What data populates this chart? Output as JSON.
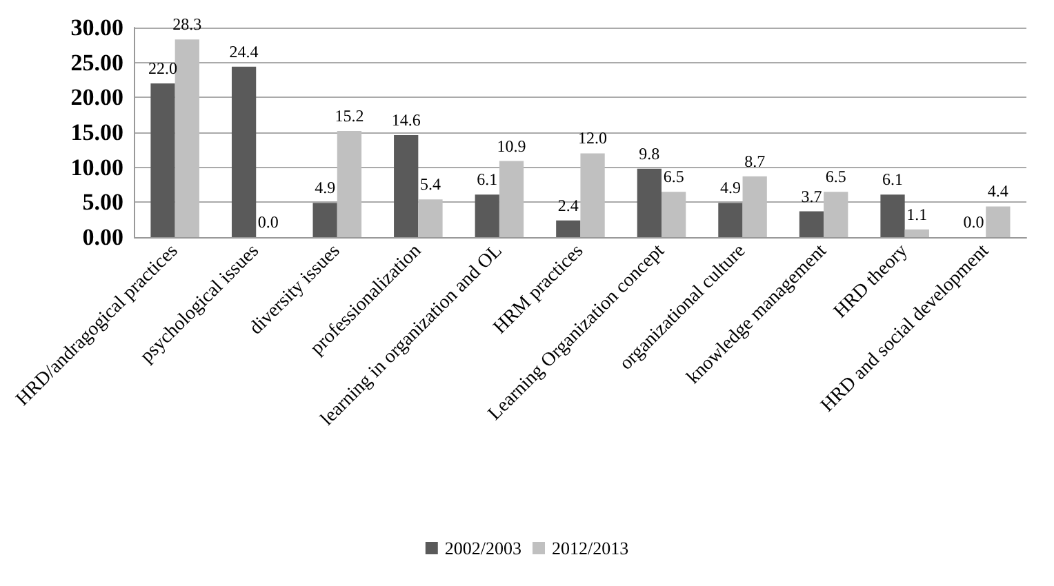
{
  "chart_data": {
    "type": "bar",
    "categories": [
      "HRD/andragogical practices",
      "psychological issues",
      "diversity issues",
      "professionalization",
      "learning in organization and OL",
      "HRM practices",
      "Learning Organization concept",
      "organizational culture",
      "knowledge management",
      "HRD theory",
      "HRD and social development"
    ],
    "series": [
      {
        "name": "2002/2003",
        "color": "#5a5a5a",
        "values": [
          22.0,
          24.4,
          4.9,
          14.6,
          6.1,
          2.4,
          9.8,
          4.9,
          3.7,
          6.1,
          0.0
        ],
        "value_labels": [
          "22.0",
          "24.4",
          "4.9",
          "14.6",
          "6.1",
          "2.4",
          "9.8",
          "4.9",
          "3.7",
          "6.1",
          "0.0"
        ]
      },
      {
        "name": "2012/2013",
        "color": "#c0c0c0",
        "values": [
          28.3,
          0.0,
          15.2,
          5.4,
          10.9,
          12.0,
          6.5,
          8.7,
          6.5,
          1.1,
          4.4
        ],
        "value_labels": [
          "28.3",
          "0.0",
          "15.2",
          "5.4",
          "10.9",
          "12.0",
          "6.5",
          "8.7",
          "6.5",
          "1.1",
          "4.4"
        ]
      }
    ],
    "ylim": [
      0,
      30
    ],
    "yticks": [
      {
        "value": 0,
        "label": "0.00"
      },
      {
        "value": 5,
        "label": "5.00"
      },
      {
        "value": 10,
        "label": "10.00"
      },
      {
        "value": 15,
        "label": "15.00"
      },
      {
        "value": 20,
        "label": "20.00"
      },
      {
        "value": 25,
        "label": "25.00"
      },
      {
        "value": 30,
        "label": "30.00"
      }
    ],
    "grid": "y",
    "legend": "bottom"
  }
}
